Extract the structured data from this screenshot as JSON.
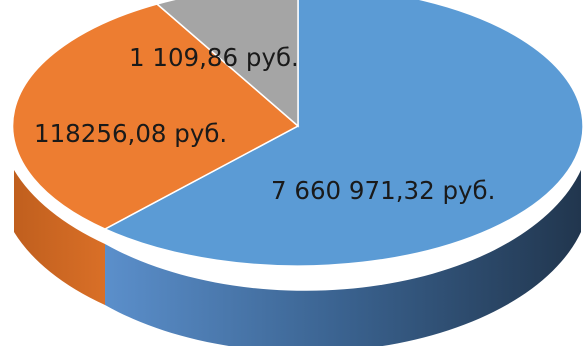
{
  "chart_data": {
    "type": "pie",
    "style": "3d",
    "slices": [
      {
        "label": "7 660 971,32 руб.",
        "value": 7660971.32,
        "color": "#5b9bd5"
      },
      {
        "label": "118256,08 руб.",
        "value": 118256.08,
        "color": "#ed7d31"
      },
      {
        "label": "1 109,86 руб.",
        "value": 1109.86,
        "color": "#a5a5a5"
      }
    ]
  }
}
